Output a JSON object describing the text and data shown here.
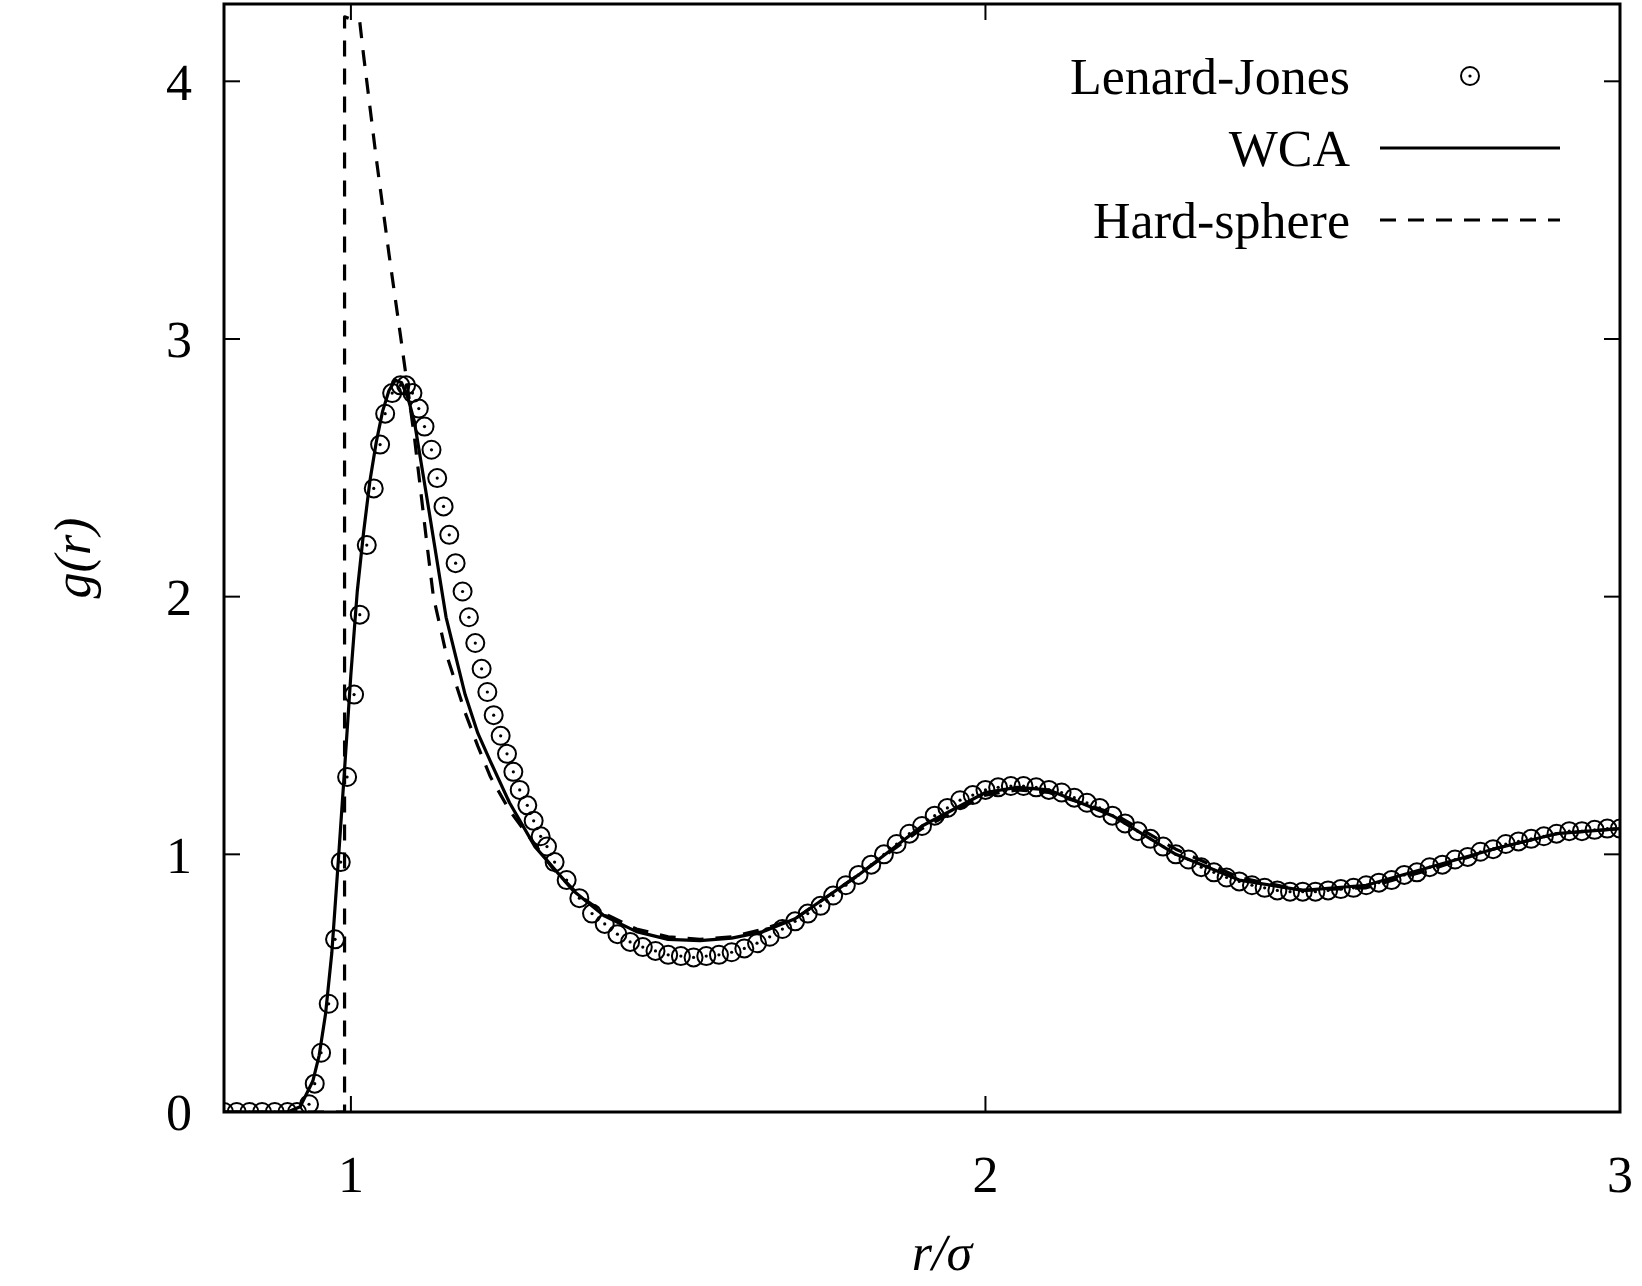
{
  "chart_data": {
    "type": "line",
    "xlabel": "r/σ",
    "ylabel": "g(r)",
    "xlim": [
      0.8,
      3
    ],
    "xticks": [
      1,
      2,
      3
    ],
    "ylim": [
      0,
      4.3
    ],
    "yticks": [
      0,
      1,
      2,
      3,
      4
    ],
    "grid": false,
    "legend": "top right",
    "series": [
      {
        "name": "Lenard-Jones",
        "type": "scatter",
        "marker": "circle",
        "color": "#000000",
        "x": [
          0.8,
          0.82,
          0.84,
          0.86,
          0.88,
          0.9,
          0.915,
          0.934,
          0.943,
          0.953,
          0.965,
          0.975,
          0.984,
          0.994,
          1.005,
          1.014,
          1.025,
          1.036,
          1.046,
          1.054,
          1.065,
          1.078,
          1.087,
          1.097,
          1.107,
          1.116,
          1.127,
          1.136,
          1.146,
          1.155,
          1.165,
          1.176,
          1.186,
          1.196,
          1.206,
          1.215,
          1.225,
          1.236,
          1.246,
          1.256,
          1.266,
          1.278,
          1.288,
          1.299,
          1.309,
          1.321,
          1.34,
          1.36,
          1.38,
          1.4,
          1.42,
          1.44,
          1.46,
          1.48,
          1.5,
          1.52,
          1.54,
          1.56,
          1.58,
          1.6,
          1.62,
          1.64,
          1.66,
          1.68,
          1.7,
          1.72,
          1.74,
          1.76,
          1.78,
          1.8,
          1.82,
          1.84,
          1.86,
          1.88,
          1.9,
          1.92,
          1.94,
          1.96,
          1.98,
          2.0,
          2.02,
          2.04,
          2.06,
          2.08,
          2.1,
          2.12,
          2.14,
          2.16,
          2.18,
          2.2,
          2.22,
          2.24,
          2.26,
          2.28,
          2.3,
          2.32,
          2.34,
          2.36,
          2.38,
          2.4,
          2.42,
          2.44,
          2.46,
          2.48,
          2.5,
          2.52,
          2.54,
          2.56,
          2.58,
          2.6,
          2.62,
          2.64,
          2.66,
          2.68,
          2.7,
          2.72,
          2.74,
          2.76,
          2.78,
          2.8,
          2.82,
          2.84,
          2.86,
          2.88,
          2.9,
          2.92,
          2.94,
          2.96,
          2.98,
          3.0
        ],
        "values": [
          0,
          0,
          0,
          0,
          0,
          0,
          0,
          0.03,
          0.11,
          0.23,
          0.42,
          0.67,
          0.97,
          1.3,
          1.62,
          1.93,
          2.2,
          2.42,
          2.59,
          2.71,
          2.79,
          2.82,
          2.82,
          2.79,
          2.73,
          2.66,
          2.57,
          2.46,
          2.35,
          2.24,
          2.13,
          2.02,
          1.92,
          1.82,
          1.72,
          1.63,
          1.54,
          1.46,
          1.39,
          1.32,
          1.25,
          1.19,
          1.13,
          1.07,
          1.03,
          0.97,
          0.9,
          0.83,
          0.77,
          0.73,
          0.69,
          0.66,
          0.64,
          0.625,
          0.61,
          0.605,
          0.6,
          0.605,
          0.61,
          0.62,
          0.635,
          0.655,
          0.68,
          0.71,
          0.74,
          0.77,
          0.8,
          0.84,
          0.88,
          0.92,
          0.96,
          1.0,
          1.04,
          1.08,
          1.11,
          1.15,
          1.18,
          1.21,
          1.23,
          1.25,
          1.26,
          1.265,
          1.265,
          1.26,
          1.25,
          1.24,
          1.22,
          1.2,
          1.18,
          1.15,
          1.12,
          1.09,
          1.06,
          1.03,
          1.0,
          0.98,
          0.95,
          0.93,
          0.91,
          0.895,
          0.88,
          0.87,
          0.86,
          0.855,
          0.855,
          0.855,
          0.86,
          0.865,
          0.87,
          0.88,
          0.89,
          0.9,
          0.92,
          0.93,
          0.95,
          0.96,
          0.98,
          0.99,
          1.01,
          1.02,
          1.04,
          1.05,
          1.06,
          1.07,
          1.08,
          1.09,
          1.09,
          1.095,
          1.1,
          1.1
        ]
      },
      {
        "name": "WCA",
        "type": "line",
        "line_style": "solid",
        "color": "#000000",
        "x": [
          0.8,
          0.9,
          0.92,
          0.94,
          0.95,
          0.96,
          0.97,
          0.98,
          0.99,
          1.0,
          1.01,
          1.02,
          1.03,
          1.04,
          1.05,
          1.06,
          1.07,
          1.08,
          1.09,
          1.1,
          1.12,
          1.15,
          1.18,
          1.2,
          1.22,
          1.25,
          1.29,
          1.35,
          1.4,
          1.45,
          1.5,
          1.55,
          1.6,
          1.65,
          1.7,
          1.8,
          1.9,
          2.0,
          2.05,
          2.1,
          2.2,
          2.3,
          2.4,
          2.5,
          2.6,
          2.7,
          2.8,
          2.9,
          3.0
        ],
        "values": [
          0,
          0,
          0.02,
          0.12,
          0.22,
          0.38,
          0.62,
          0.97,
          1.33,
          1.7,
          2.02,
          2.25,
          2.45,
          2.6,
          2.72,
          2.8,
          2.84,
          2.83,
          2.77,
          2.68,
          2.38,
          1.92,
          1.62,
          1.47,
          1.36,
          1.2,
          1.03,
          0.86,
          0.76,
          0.7,
          0.67,
          0.665,
          0.675,
          0.7,
          0.75,
          0.92,
          1.11,
          1.24,
          1.26,
          1.25,
          1.15,
          1.0,
          0.9,
          0.86,
          0.88,
          0.95,
          1.02,
          1.08,
          1.1
        ]
      },
      {
        "name": "Hard-sphere",
        "type": "line",
        "line_style": "dashed",
        "color": "#000000",
        "x": [
          0.8,
          0.99,
          0.99,
          1.014,
          1.02,
          1.04,
          1.06,
          1.08,
          1.1,
          1.12,
          1.13,
          1.15,
          1.18,
          1.2,
          1.22,
          1.25,
          1.28,
          1.32,
          1.36,
          1.4,
          1.45,
          1.5,
          1.55,
          1.6,
          1.65,
          1.7,
          1.8,
          1.9,
          2.0,
          2.05,
          2.1,
          2.2,
          2.3,
          2.4,
          2.5,
          2.6,
          2.7,
          2.8,
          2.9,
          3.0
        ],
        "values": [
          0,
          0,
          4.25,
          4.23,
          4.1,
          3.7,
          3.33,
          2.98,
          2.62,
          2.2,
          2.0,
          1.78,
          1.55,
          1.42,
          1.3,
          1.17,
          1.07,
          0.94,
          0.84,
          0.77,
          0.71,
          0.68,
          0.67,
          0.68,
          0.71,
          0.75,
          0.92,
          1.1,
          1.23,
          1.25,
          1.24,
          1.16,
          1.02,
          0.91,
          0.86,
          0.87,
          0.94,
          1.02,
          1.08,
          1.1
        ]
      }
    ]
  }
}
